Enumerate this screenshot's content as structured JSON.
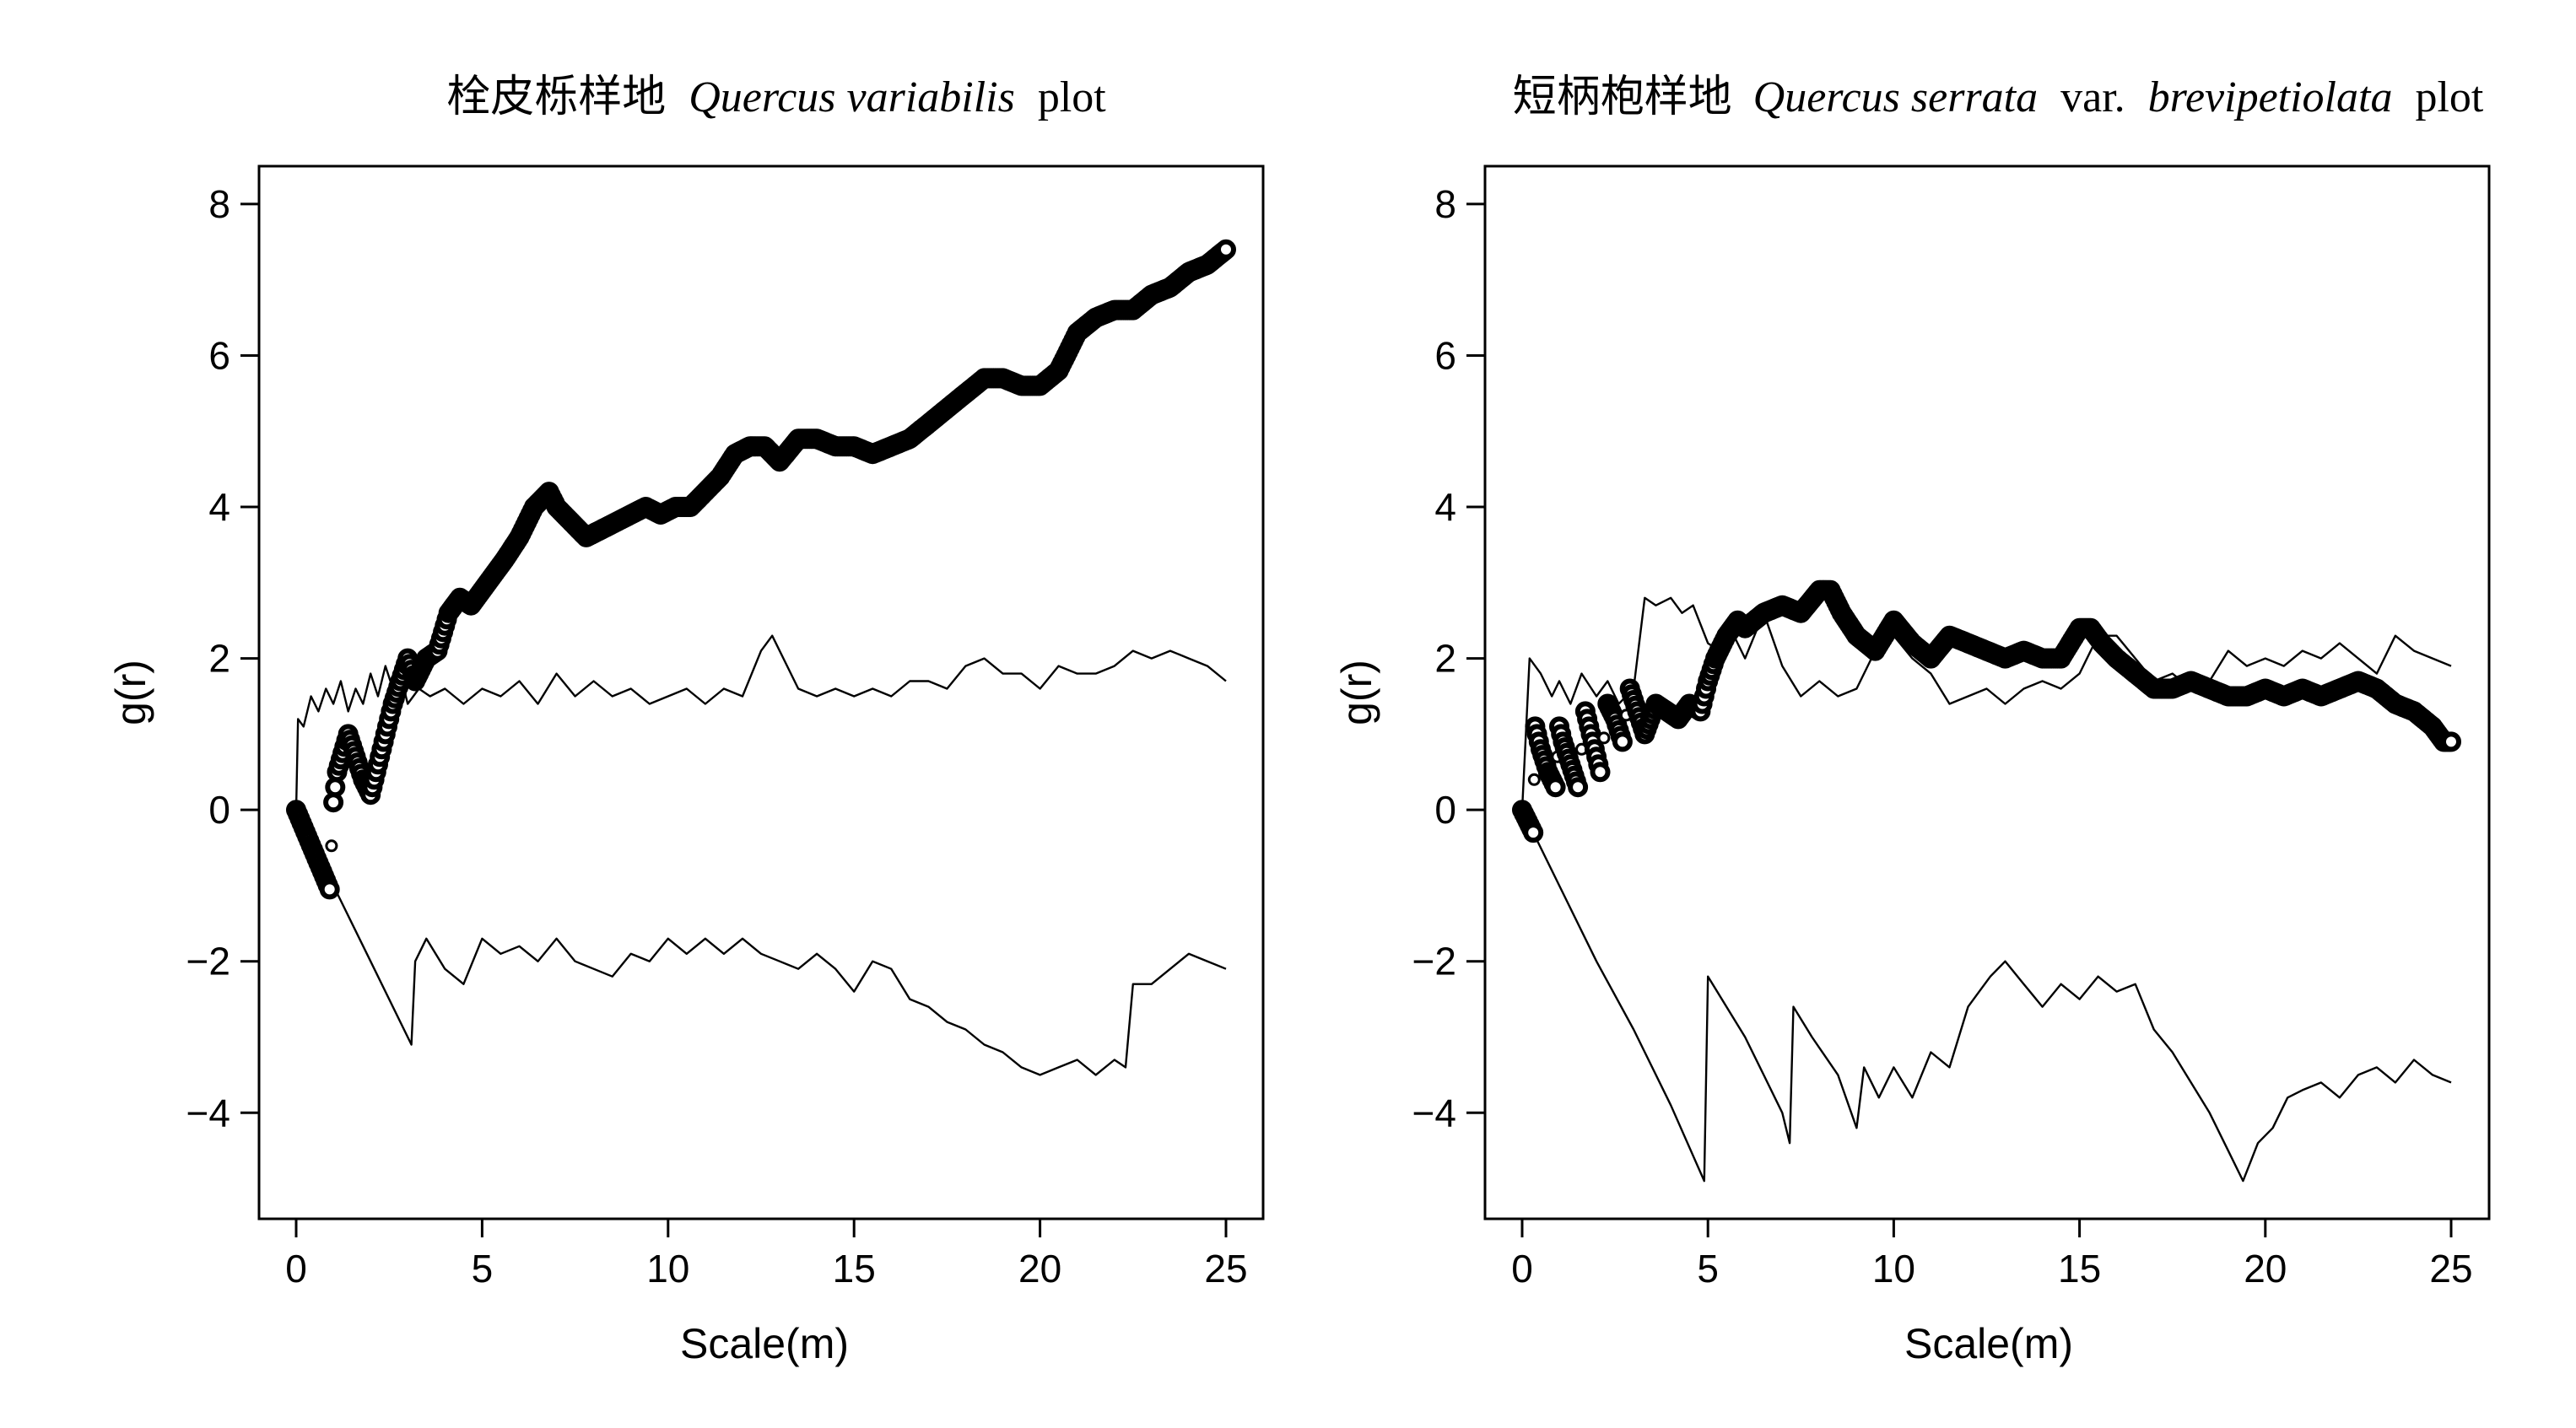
{
  "chart_data": [
    {
      "type": "scatter",
      "title": {
        "cn": "栓皮栎样地",
        "species": "Quercus variabilis",
        "suffix": "plot"
      },
      "xlabel": "Scale(m)",
      "ylabel": "g(r)",
      "xlim": [
        0,
        25
      ],
      "ylim": [
        -5.4,
        8.5
      ],
      "xticks": [
        0,
        5,
        10,
        15,
        20,
        25
      ],
      "yticks": [
        -4,
        -2,
        0,
        2,
        4,
        6,
        8
      ],
      "grid": false,
      "series": [
        {
          "role": "observed",
          "style": "open-circles",
          "x": [
            0,
            0.3,
            0.6,
            0.9,
            1.0,
            1.1,
            1.25,
            1.4,
            1.6,
            1.8,
            2.0,
            2.2,
            2.4,
            2.6,
            2.8,
            3.0,
            3.2,
            3.5,
            3.8,
            4.1,
            4.4,
            4.7,
            5.0,
            5.3,
            5.6,
            6.0,
            6.4,
            6.8,
            7.0,
            7.4,
            7.8,
            8.2,
            8.6,
            9.0,
            9.4,
            9.8,
            10.2,
            10.6,
            11.0,
            11.4,
            11.8,
            12.2,
            12.6,
            13.0,
            13.5,
            14.0,
            14.5,
            15.0,
            15.5,
            16.0,
            16.5,
            17.0,
            17.5,
            18.0,
            18.5,
            19.0,
            19.5,
            20.0,
            20.5,
            21.0,
            21.5,
            22.0,
            22.5,
            23.0,
            23.5,
            24.0,
            24.5,
            25.0
          ],
          "y": [
            0,
            -0.35,
            -0.7,
            -1.05,
            0.1,
            0.5,
            0.75,
            1.0,
            0.7,
            0.4,
            0.2,
            0.6,
            1.0,
            1.4,
            1.7,
            2.0,
            1.7,
            2.0,
            2.1,
            2.6,
            2.8,
            2.7,
            2.9,
            3.1,
            3.3,
            3.6,
            4.0,
            4.2,
            4.0,
            3.8,
            3.6,
            3.7,
            3.8,
            3.9,
            4.0,
            3.9,
            4.0,
            4.0,
            4.2,
            4.4,
            4.7,
            4.8,
            4.8,
            4.6,
            4.9,
            4.9,
            4.8,
            4.8,
            4.7,
            4.8,
            4.9,
            5.1,
            5.3,
            5.5,
            5.7,
            5.7,
            5.6,
            5.6,
            5.8,
            6.3,
            6.5,
            6.6,
            6.6,
            6.8,
            6.9,
            7.1,
            7.2,
            7.4
          ]
        },
        {
          "role": "upper-envelope",
          "style": "thin-line",
          "x": [
            0,
            0.05,
            0.2,
            0.4,
            0.6,
            0.8,
            1.0,
            1.2,
            1.4,
            1.6,
            1.8,
            2.0,
            2.2,
            2.4,
            2.6,
            2.8,
            3.0,
            3.3,
            3.6,
            4.0,
            4.5,
            5.0,
            5.5,
            6.0,
            6.5,
            7.0,
            7.5,
            8.0,
            8.5,
            9.0,
            9.5,
            10.0,
            10.5,
            11.0,
            11.5,
            12.0,
            12.5,
            12.8,
            13.2,
            13.5,
            14.0,
            14.5,
            15.0,
            15.5,
            16.0,
            16.5,
            17.0,
            17.5,
            18.0,
            18.5,
            19.0,
            19.5,
            20.0,
            20.5,
            21.0,
            21.5,
            22.0,
            22.5,
            23.0,
            23.5,
            24.0,
            24.5,
            25.0
          ],
          "y": [
            0,
            1.2,
            1.1,
            1.5,
            1.3,
            1.6,
            1.4,
            1.7,
            1.3,
            1.6,
            1.4,
            1.8,
            1.5,
            1.9,
            1.6,
            1.8,
            1.4,
            1.6,
            1.5,
            1.6,
            1.4,
            1.6,
            1.5,
            1.7,
            1.4,
            1.8,
            1.5,
            1.7,
            1.5,
            1.6,
            1.4,
            1.5,
            1.6,
            1.4,
            1.6,
            1.5,
            2.1,
            2.3,
            1.9,
            1.6,
            1.5,
            1.6,
            1.5,
            1.6,
            1.5,
            1.7,
            1.7,
            1.6,
            1.9,
            2.0,
            1.8,
            1.8,
            1.6,
            1.9,
            1.8,
            1.8,
            1.9,
            2.1,
            2.0,
            2.1,
            2.0,
            1.9,
            1.7
          ]
        },
        {
          "role": "lower-envelope",
          "style": "thin-line",
          "x": [
            0,
            1.0,
            2.0,
            3.1,
            3.2,
            3.5,
            4.0,
            4.5,
            5.0,
            5.5,
            6.0,
            6.5,
            7.0,
            7.5,
            8.0,
            8.5,
            9.0,
            9.5,
            10.0,
            10.5,
            11.0,
            11.5,
            12.0,
            12.5,
            13.0,
            13.5,
            14.0,
            14.5,
            15.0,
            15.5,
            16.0,
            16.5,
            17.0,
            17.5,
            18.0,
            18.5,
            19.0,
            19.5,
            20.0,
            20.5,
            21.0,
            21.5,
            22.0,
            22.3,
            22.5,
            23.0,
            23.5,
            24.0,
            24.5,
            25.0
          ],
          "y": [
            0,
            -1.0,
            -2.0,
            -3.1,
            -2.0,
            -1.7,
            -2.1,
            -2.3,
            -1.7,
            -1.9,
            -1.8,
            -2.0,
            -1.7,
            -2.0,
            -2.1,
            -2.2,
            -1.9,
            -2.0,
            -1.7,
            -1.9,
            -1.7,
            -1.9,
            -1.7,
            -1.9,
            -2.0,
            -2.1,
            -1.9,
            -2.1,
            -2.4,
            -2.0,
            -2.1,
            -2.5,
            -2.6,
            -2.8,
            -2.9,
            -3.1,
            -3.2,
            -3.4,
            -3.5,
            -3.4,
            -3.3,
            -3.5,
            -3.3,
            -3.4,
            -2.3,
            -2.3,
            -2.1,
            -1.9,
            -2.0,
            -2.1
          ]
        }
      ]
    },
    {
      "type": "scatter",
      "title": {
        "cn": "短柄枹样地",
        "species": "Quercus serrata",
        "var": "var.",
        "variety": "brevipetiolata",
        "suffix": "plot"
      },
      "xlabel": "Scale(m)",
      "ylabel": "g(r)",
      "xlim": [
        0,
        25
      ],
      "ylim": [
        -5.4,
        8.5
      ],
      "xticks": [
        0,
        5,
        10,
        15,
        20,
        25
      ],
      "yticks": [
        -4,
        -2,
        0,
        2,
        4,
        6,
        8
      ],
      "grid": false,
      "series": [
        {
          "role": "observed",
          "style": "open-circles",
          "x": [
            0,
            0.15,
            0.3,
            0.35,
            0.5,
            0.7,
            0.9,
            1.0,
            1.1,
            1.3,
            1.5,
            1.7,
            1.9,
            2.1,
            2.3,
            2.5,
            2.7,
            2.9,
            3.1,
            3.3,
            3.6,
            3.9,
            4.2,
            4.5,
            4.8,
            5.0,
            5.2,
            5.5,
            5.8,
            6.0,
            6.5,
            7.0,
            7.5,
            8.0,
            8.3,
            8.6,
            9.0,
            9.5,
            10.0,
            10.5,
            11.0,
            11.5,
            12.0,
            12.5,
            13.0,
            13.5,
            14.0,
            14.5,
            15.0,
            15.3,
            15.6,
            16.0,
            16.5,
            17.0,
            17.5,
            18.0,
            18.5,
            19.0,
            19.5,
            20.0,
            20.5,
            21.0,
            21.5,
            22.0,
            22.5,
            23.0,
            23.5,
            24.0,
            24.5,
            24.8,
            25.0
          ],
          "y": [
            0,
            -0.15,
            -0.3,
            1.1,
            0.8,
            0.5,
            0.3,
            1.1,
            0.9,
            0.6,
            0.3,
            1.3,
            0.9,
            0.5,
            1.4,
            1.2,
            0.9,
            1.6,
            1.3,
            1.0,
            1.4,
            1.3,
            1.2,
            1.4,
            1.3,
            1.7,
            2.0,
            2.3,
            2.5,
            2.4,
            2.6,
            2.7,
            2.6,
            2.9,
            2.9,
            2.6,
            2.3,
            2.1,
            2.5,
            2.2,
            2.0,
            2.3,
            2.2,
            2.1,
            2.0,
            2.1,
            2.0,
            2.0,
            2.4,
            2.4,
            2.2,
            2.0,
            1.8,
            1.6,
            1.6,
            1.7,
            1.6,
            1.5,
            1.5,
            1.6,
            1.5,
            1.6,
            1.5,
            1.6,
            1.7,
            1.6,
            1.4,
            1.3,
            1.1,
            0.9,
            0.9
          ]
        },
        {
          "role": "upper-envelope",
          "style": "thin-line",
          "x": [
            0,
            0.2,
            0.5,
            0.8,
            1.0,
            1.3,
            1.6,
            2.0,
            2.3,
            2.6,
            3.0,
            3.3,
            3.6,
            4.0,
            4.3,
            4.6,
            5.0,
            5.3,
            5.6,
            6.0,
            6.5,
            7.0,
            7.5,
            8.0,
            8.5,
            9.0,
            9.5,
            10.0,
            10.5,
            11.0,
            11.5,
            12.0,
            12.5,
            13.0,
            13.5,
            14.0,
            14.5,
            15.0,
            15.5,
            16.0,
            16.5,
            17.0,
            17.5,
            18.0,
            18.5,
            19.0,
            19.5,
            20.0,
            20.5,
            21.0,
            21.5,
            22.0,
            22.5,
            23.0,
            23.5,
            24.0,
            24.5,
            25.0
          ],
          "y": [
            0,
            2.0,
            1.8,
            1.5,
            1.7,
            1.4,
            1.8,
            1.5,
            1.7,
            1.4,
            1.6,
            2.8,
            2.7,
            2.8,
            2.6,
            2.7,
            2.2,
            2.1,
            2.4,
            2.0,
            2.6,
            1.9,
            1.5,
            1.7,
            1.5,
            1.6,
            2.1,
            2.3,
            2.0,
            1.8,
            1.4,
            1.5,
            1.6,
            1.4,
            1.6,
            1.7,
            1.6,
            1.8,
            2.3,
            2.3,
            2.0,
            1.7,
            1.8,
            1.6,
            1.7,
            2.1,
            1.9,
            2.0,
            1.9,
            2.1,
            2.0,
            2.2,
            2.0,
            1.8,
            2.3,
            2.1,
            2.0,
            1.9
          ]
        },
        {
          "role": "lower-envelope",
          "style": "thin-line",
          "x": [
            0,
            1.0,
            2.0,
            3.0,
            4.0,
            4.9,
            5.0,
            5.5,
            6.0,
            6.5,
            7.0,
            7.2,
            7.3,
            7.8,
            8.5,
            9.0,
            9.2,
            9.6,
            10.0,
            10.5,
            11.0,
            11.5,
            12.0,
            12.3,
            12.6,
            13.0,
            13.5,
            14.0,
            14.5,
            15.0,
            15.5,
            16.0,
            16.5,
            17.0,
            17.5,
            18.0,
            18.5,
            19.0,
            19.4,
            19.8,
            20.2,
            20.6,
            21.0,
            21.5,
            22.0,
            22.5,
            23.0,
            23.5,
            24.0,
            24.5,
            25.0
          ],
          "y": [
            0,
            -1.0,
            -2.0,
            -2.9,
            -3.9,
            -4.9,
            -2.2,
            -2.6,
            -3.0,
            -3.5,
            -4.0,
            -4.4,
            -2.6,
            -3.0,
            -3.5,
            -4.2,
            -3.4,
            -3.8,
            -3.4,
            -3.8,
            -3.2,
            -3.4,
            -2.6,
            -2.4,
            -2.2,
            -2.0,
            -2.3,
            -2.6,
            -2.3,
            -2.5,
            -2.2,
            -2.4,
            -2.3,
            -2.9,
            -3.2,
            -3.6,
            -4.0,
            -4.5,
            -4.9,
            -4.4,
            -4.2,
            -3.8,
            -3.7,
            -3.6,
            -3.8,
            -3.5,
            -3.4,
            -3.6,
            -3.3,
            -3.5,
            -3.6
          ]
        }
      ]
    }
  ]
}
